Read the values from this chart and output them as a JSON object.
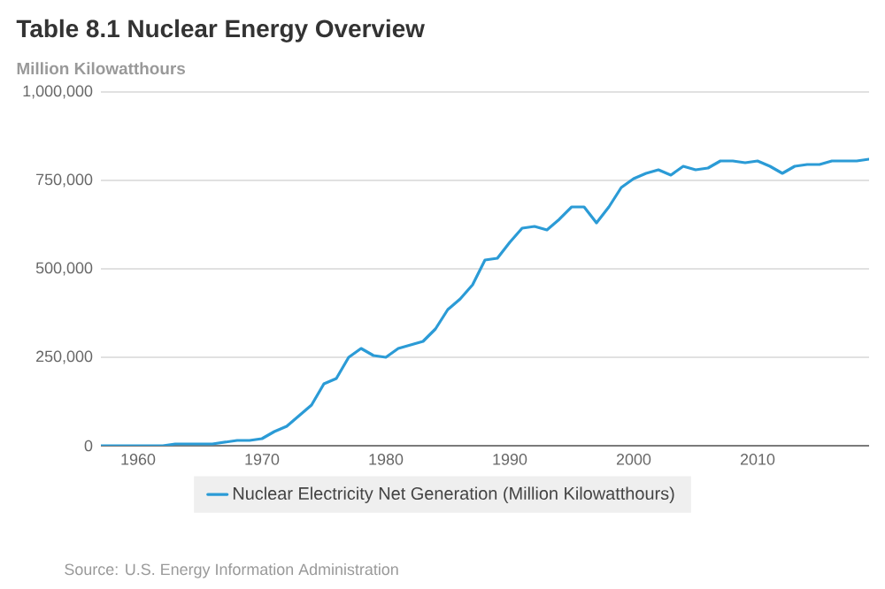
{
  "chart_data": {
    "type": "line",
    "title": "Table 8.1 Nuclear Energy Overview",
    "ylabel": "Million Kilowatthours",
    "x": [
      1957,
      1958,
      1959,
      1960,
      1961,
      1962,
      1963,
      1964,
      1965,
      1966,
      1967,
      1968,
      1969,
      1970,
      1971,
      1972,
      1973,
      1974,
      1975,
      1976,
      1977,
      1978,
      1979,
      1980,
      1981,
      1982,
      1983,
      1984,
      1985,
      1986,
      1987,
      1988,
      1989,
      1990,
      1991,
      1992,
      1993,
      1994,
      1995,
      1996,
      1997,
      1998,
      1999,
      2000,
      2001,
      2002,
      2003,
      2004,
      2005,
      2006,
      2007,
      2008,
      2009,
      2010,
      2011,
      2012,
      2013,
      2014,
      2015,
      2016,
      2017,
      2018,
      2019
    ],
    "series": [
      {
        "name": "Nuclear Electricity Net Generation (Million Kilowatthours)",
        "color": "#2b9bd6",
        "values": [
          0,
          0,
          0,
          0,
          0,
          0,
          5000,
          5000,
          5000,
          5000,
          10000,
          15000,
          15000,
          20000,
          40000,
          55000,
          85000,
          115000,
          175000,
          190000,
          250000,
          275000,
          255000,
          250000,
          275000,
          285000,
          295000,
          330000,
          385000,
          415000,
          455000,
          525000,
          530000,
          575000,
          615000,
          620000,
          610000,
          640000,
          675000,
          675000,
          630000,
          675000,
          730000,
          755000,
          770000,
          780000,
          765000,
          790000,
          780000,
          785000,
          805000,
          805000,
          800000,
          805000,
          790000,
          770000,
          790000,
          795000,
          795000,
          805000,
          805000,
          805000,
          810000
        ]
      }
    ],
    "xlim": [
      1957,
      2019
    ],
    "xticks": [
      1960,
      1970,
      1980,
      1990,
      2000,
      2010
    ],
    "ylim": [
      0,
      1000000
    ],
    "yticks": [
      0,
      {
        "value": 250000,
        "label": "250,000"
      },
      {
        "value": 500000,
        "label": "500,000"
      },
      {
        "value": 750000,
        "label": "750,000"
      },
      {
        "value": 1000000,
        "label": "1,000,000"
      }
    ],
    "grid": "y",
    "legend": "bottom",
    "annotations": [
      "Source: U.S. Energy Information Administration"
    ]
  }
}
